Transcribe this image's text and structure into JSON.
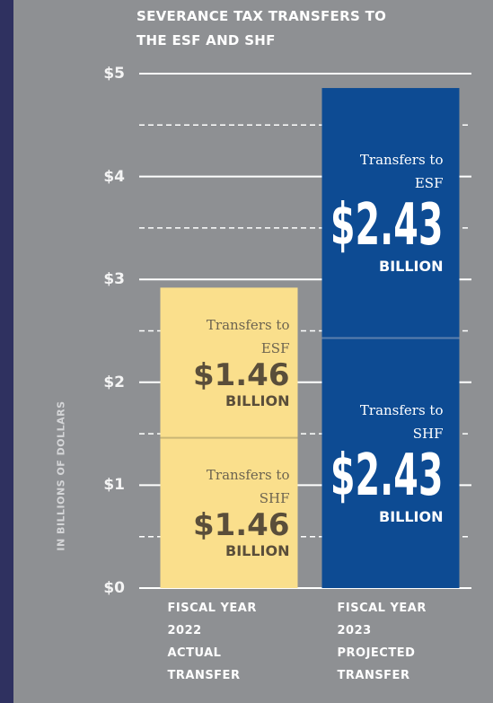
{
  "chart_data": {
    "type": "bar",
    "stacked": true,
    "title": "SEVERANCE TAX TRANSFERS TO\nTHE ESF AND SHF",
    "ylabel": "IN BILLIONS OF DOLLARS",
    "categories": [
      "FISCAL YEAR\n2022\nACTUAL\nTRANSFER",
      "FISCAL YEAR\n2023\nPROJECTED\nTRANSFER"
    ],
    "category_colors": [
      "#fadf8c",
      "#0d4b93"
    ],
    "series": [
      {
        "name": "Transfers to SHF",
        "values": [
          1.46,
          2.43
        ],
        "value_labels": [
          "$1.46",
          "$2.43"
        ]
      },
      {
        "name": "Transfers to ESF",
        "values": [
          1.46,
          2.43
        ],
        "value_labels": [
          "$1.46",
          "$2.43"
        ]
      }
    ],
    "unit_label": "BILLION",
    "ylim": [
      0,
      5
    ],
    "yticks": [
      {
        "value": 0,
        "label": "$0"
      },
      {
        "value": 1,
        "label": "$1"
      },
      {
        "value": 2,
        "label": "$2"
      },
      {
        "value": 3,
        "label": "$3"
      },
      {
        "value": 4,
        "label": "$4"
      },
      {
        "value": 5,
        "label": "$5"
      }
    ],
    "minor_yticks": [
      0.5,
      1.5,
      2.5,
      3.5,
      4.5
    ],
    "grid": true
  }
}
